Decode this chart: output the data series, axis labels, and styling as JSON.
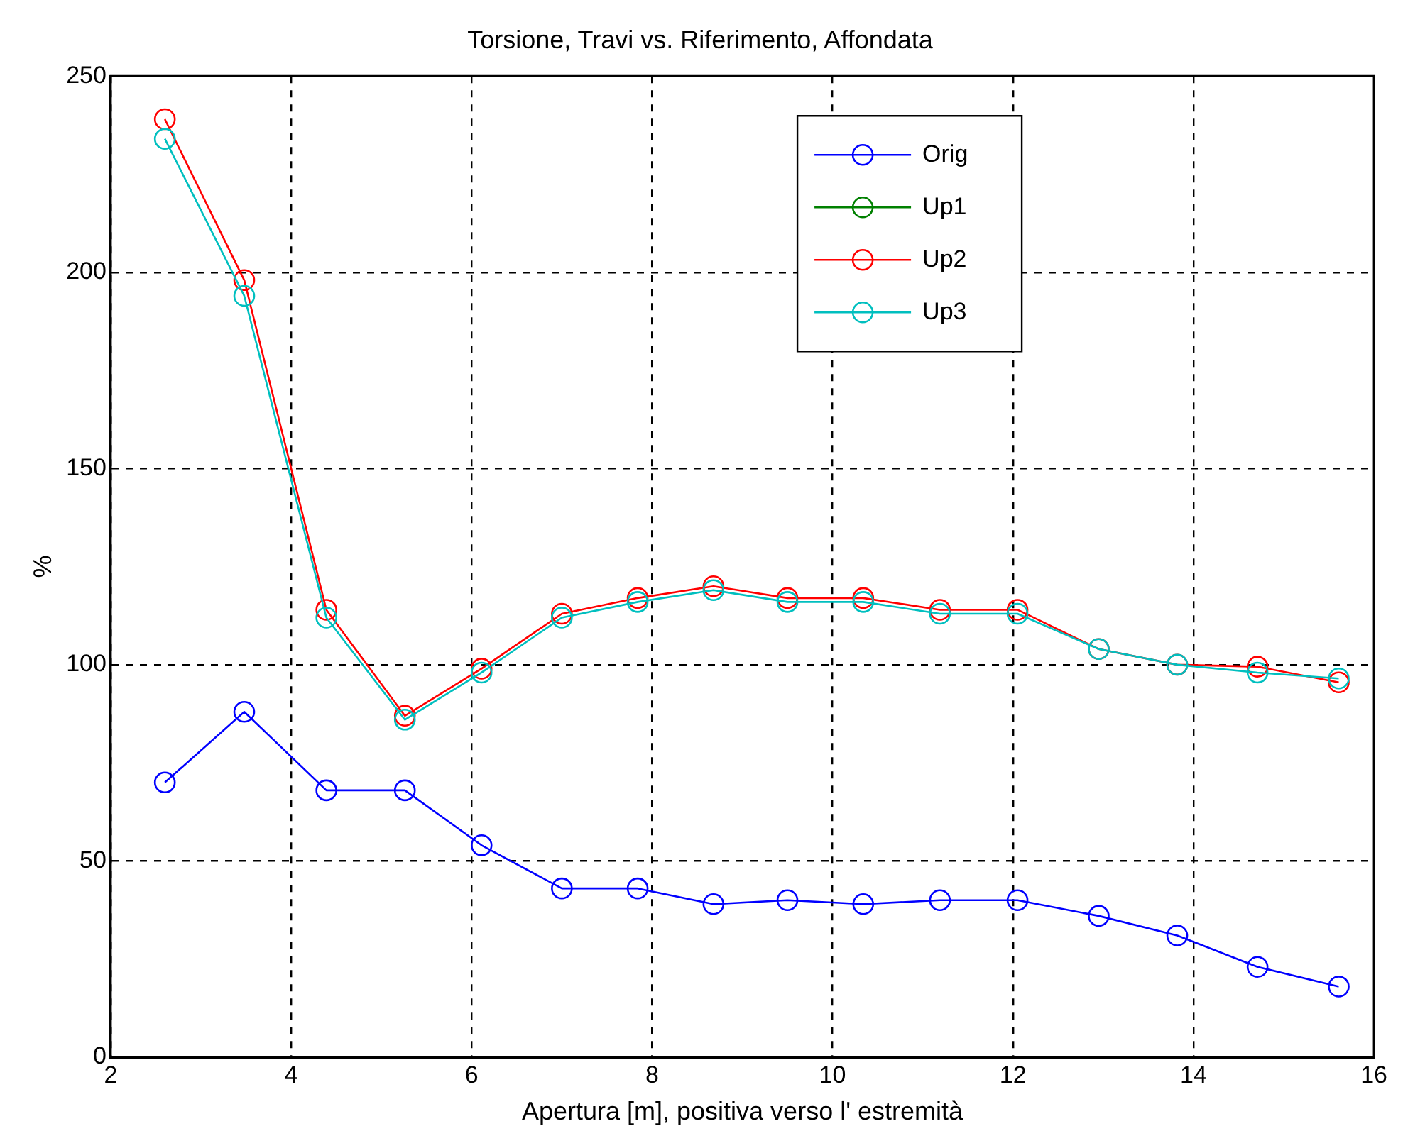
{
  "chart_data": {
    "type": "line",
    "title": "Torsione, Travi vs. Riferimento, Affondata",
    "xlabel": "Apertura [m], positiva verso l' estremità",
    "ylabel": "%",
    "x": [
      2.6,
      3.48,
      4.39,
      5.26,
      6.11,
      7.0,
      7.84,
      8.68,
      9.5,
      10.34,
      11.19,
      12.05,
      12.95,
      13.82,
      14.71,
      15.61
    ],
    "series": [
      {
        "name": "Orig",
        "color": "#0000ff",
        "values": [
          70,
          88,
          68,
          68,
          54,
          43,
          43,
          39,
          40,
          39,
          40,
          40,
          36,
          31,
          23,
          18
        ]
      },
      {
        "name": "Up1",
        "color": "#008000",
        "values": [
          null,
          null,
          null,
          null,
          null,
          null,
          null,
          null,
          null,
          null,
          null,
          null,
          null,
          null,
          null,
          null
        ]
      },
      {
        "name": "Up2",
        "color": "#ff0000",
        "values": [
          239,
          198,
          114,
          87,
          99,
          113,
          117,
          120,
          117,
          117,
          114,
          114,
          104,
          100,
          99.5,
          95.5
        ]
      },
      {
        "name": "Up3",
        "color": "#00bfbf",
        "values": [
          234,
          194,
          112,
          86,
          98,
          112,
          116,
          119,
          116,
          116,
          113,
          113,
          104,
          100,
          98,
          96.5
        ]
      }
    ],
    "xlim": [
      2,
      16
    ],
    "xticks": [
      2,
      4,
      6,
      8,
      10,
      12,
      14,
      16
    ],
    "ylim": [
      0,
      250
    ],
    "yticks": [
      0,
      50,
      100,
      150,
      200,
      250
    ],
    "grid": true,
    "legend": "top right",
    "marker": "circle",
    "line_style": "solid"
  }
}
